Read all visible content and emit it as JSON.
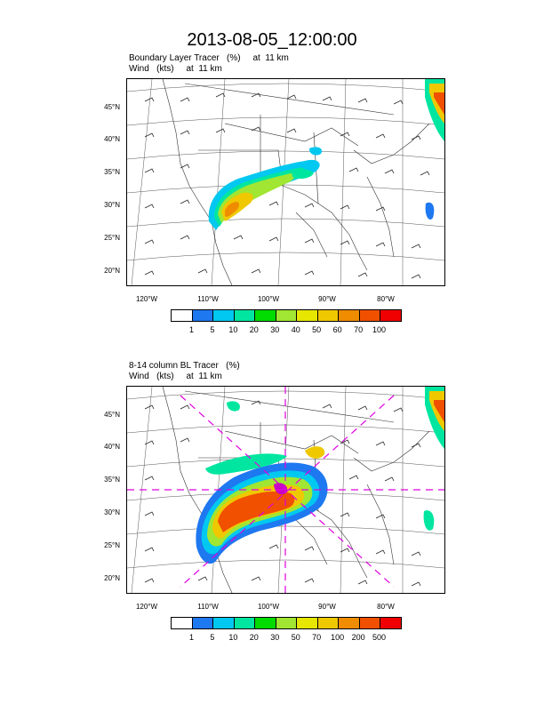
{
  "title": "2013-08-05_12:00:00",
  "lat_labels": [
    "45°N",
    "40°N",
    "35°N",
    "30°N",
    "25°N",
    "20°N"
  ],
  "lon_labels": [
    "120°W",
    "110°W",
    "100°W",
    "90°W",
    "80°W"
  ],
  "panels": [
    {
      "line1": "Boundary Layer Tracer   (%)     at  11 km",
      "line2": "Wind   (kts)     at  11 km",
      "colorbar": {
        "colors": [
          "#ffffff",
          "#1e78f0",
          "#00c8f0",
          "#00e6a0",
          "#00dc00",
          "#a0e632",
          "#e6e600",
          "#f0c800",
          "#f08c00",
          "#f05000",
          "#f00000"
        ],
        "labels": [
          "1",
          "5",
          "10",
          "20",
          "30",
          "40",
          "50",
          "60",
          "70",
          "100"
        ]
      }
    },
    {
      "line1": "8-14 column BL Tracer   (%)",
      "line2": "Wind   (kts)     at  11 km",
      "colorbar": {
        "colors": [
          "#ffffff",
          "#1e78f0",
          "#00c8f0",
          "#00e6a0",
          "#00dc00",
          "#a0e632",
          "#e6e600",
          "#f0c800",
          "#f08c00",
          "#f05000",
          "#f00000"
        ],
        "labels": [
          "1",
          "5",
          "10",
          "20",
          "30",
          "50",
          "70",
          "100",
          "200",
          "500"
        ]
      }
    }
  ]
}
